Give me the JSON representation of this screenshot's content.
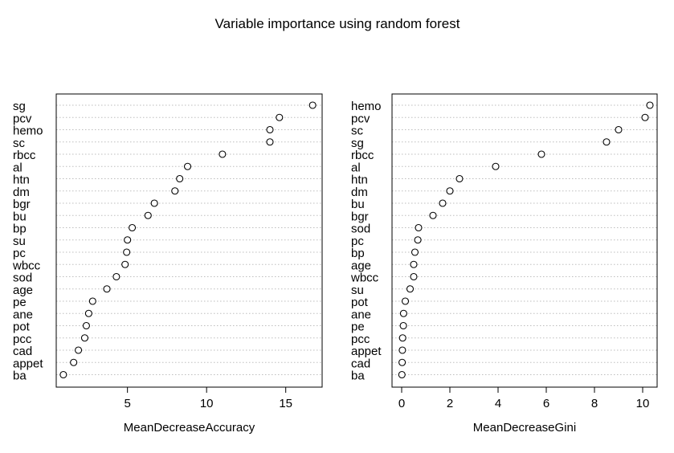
{
  "title": "Variable importance using random forest",
  "chart_data": [
    {
      "type": "scatter",
      "subtype": "dotchart",
      "xlabel": "MeanDecreaseAccuracy",
      "xlim": [
        0.5,
        17.3
      ],
      "xticks": [
        5,
        10,
        15
      ],
      "grid": "dotted horizontal",
      "variables": [
        "sg",
        "pcv",
        "hemo",
        "sc",
        "rbcc",
        "al",
        "htn",
        "dm",
        "bgr",
        "bu",
        "bp",
        "su",
        "pc",
        "wbcc",
        "sod",
        "age",
        "pe",
        "ane",
        "pot",
        "pcc",
        "cad",
        "appet",
        "ba"
      ],
      "values": [
        16.7,
        14.6,
        14.0,
        14.0,
        11.0,
        8.8,
        8.3,
        8.0,
        6.7,
        6.3,
        5.3,
        5.0,
        4.95,
        4.85,
        4.3,
        3.7,
        2.8,
        2.55,
        2.4,
        2.3,
        1.9,
        1.6,
        0.95
      ]
    },
    {
      "type": "scatter",
      "subtype": "dotchart",
      "xlabel": "MeanDecreaseGini",
      "xlim": [
        -0.4,
        10.6
      ],
      "xticks": [
        0,
        2,
        4,
        6,
        8,
        10
      ],
      "grid": "dotted horizontal",
      "variables": [
        "hemo",
        "pcv",
        "sc",
        "sg",
        "rbcc",
        "al",
        "htn",
        "dm",
        "bu",
        "bgr",
        "sod",
        "pc",
        "bp",
        "age",
        "wbcc",
        "su",
        "pot",
        "ane",
        "pe",
        "pcc",
        "appet",
        "cad",
        "ba"
      ],
      "values": [
        10.3,
        10.1,
        9.0,
        8.5,
        5.8,
        3.9,
        2.4,
        2.0,
        1.7,
        1.3,
        0.7,
        0.67,
        0.55,
        0.5,
        0.5,
        0.35,
        0.15,
        0.08,
        0.07,
        0.04,
        0.03,
        0.02,
        0.01
      ]
    }
  ]
}
